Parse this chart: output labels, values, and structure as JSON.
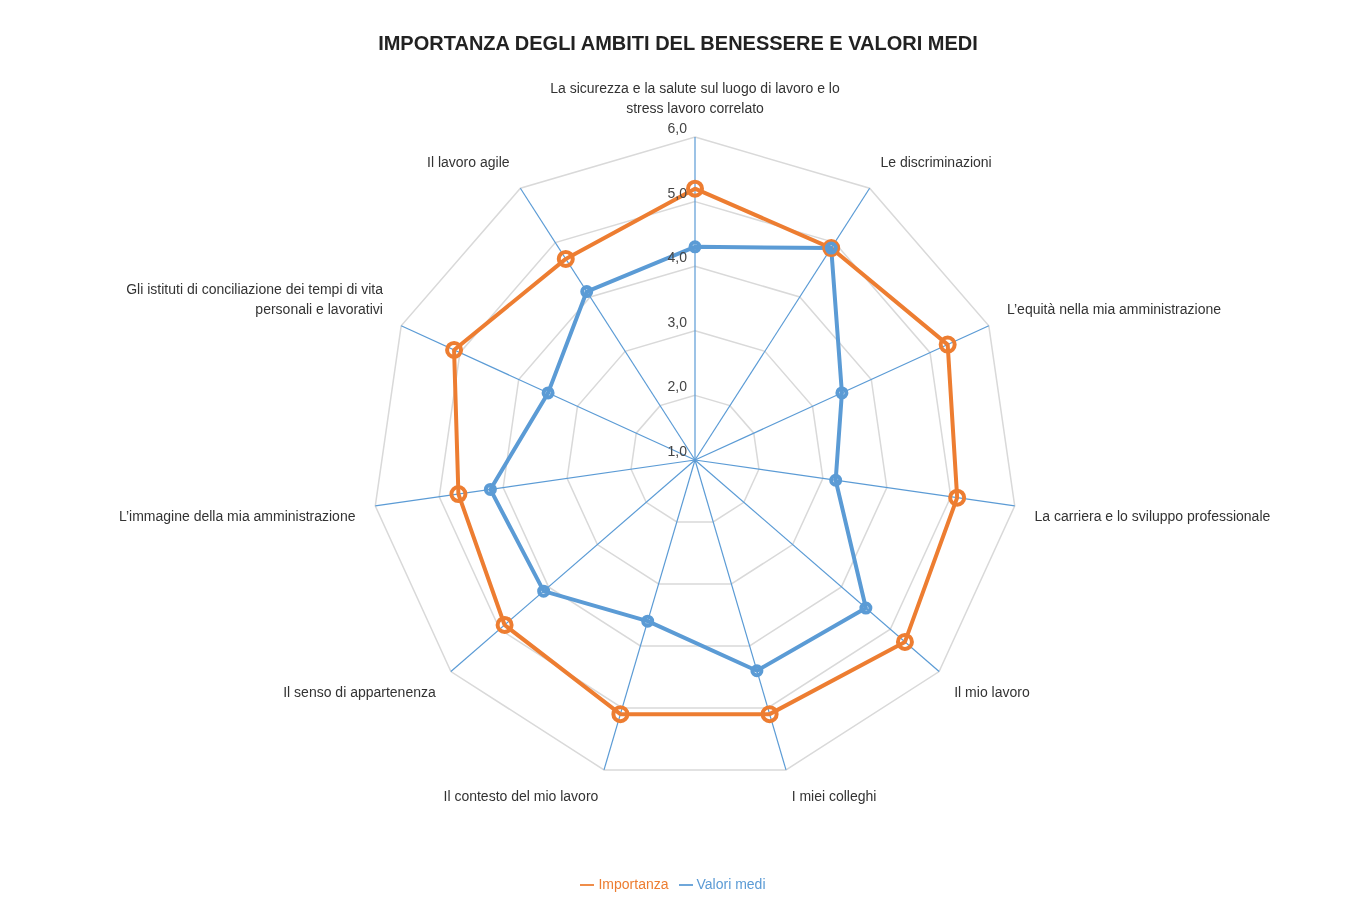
{
  "chart_data": {
    "type": "radar",
    "title": "IMPORTANZA DEGLI AMBITI DEL BENESSERE E VALORI MEDI",
    "categories": [
      "La sicurezza e la salute sul luogo di lavoro e lo stress lavoro correlato",
      "Le discriminazioni",
      "L’equità nella mia amministrazione",
      "La carriera e lo sviluppo professionale",
      "Il mio lavoro",
      "I miei colleghi",
      "Il contesto del mio lavoro",
      "Il senso di appartenenza",
      "L’immagine della mia amministrazione",
      "Gli istituti di conciliazione dei tempi di vita personali e lavorativi",
      "Il lavoro agile"
    ],
    "series": [
      {
        "name": "Importanza",
        "color": "#ed7d31",
        "values": [
          5.2,
          4.9,
          5.3,
          5.1,
          5.3,
          5.1,
          5.1,
          4.9,
          4.7,
          5.1,
          4.7
        ]
      },
      {
        "name": "Valori medi",
        "color": "#5b9bd5",
        "values": [
          4.3,
          4.9,
          3.5,
          3.2,
          4.5,
          4.4,
          3.6,
          4.1,
          4.2,
          3.5,
          4.1
        ]
      }
    ],
    "ylim": [
      1,
      6
    ],
    "yticks": [
      {
        "value": 1,
        "label": "1,0"
      },
      {
        "value": 2,
        "label": "2,0"
      },
      {
        "value": 3,
        "label": "3,0"
      },
      {
        "value": 4,
        "label": "4,0"
      },
      {
        "value": 5,
        "label": "5,0"
      },
      {
        "value": 6,
        "label": "6,0"
      }
    ],
    "grid": true,
    "legend": "bottom",
    "marker": "circle",
    "line_style": "solid"
  }
}
